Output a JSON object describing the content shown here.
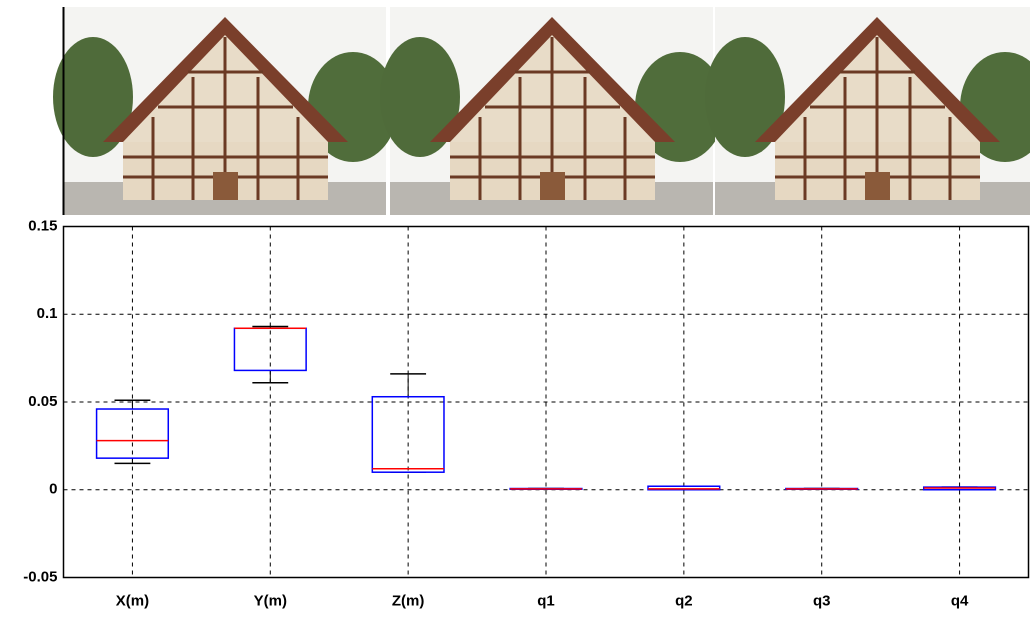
{
  "chart_data": {
    "type": "box",
    "categories": [
      "X(m)",
      "Y(m)",
      "Z(m)",
      "q1",
      "q2",
      "q3",
      "q4"
    ],
    "min": [
      0.015,
      0.061,
      0.01,
      0.0003,
      0.0,
      0.0003,
      0.0
    ],
    "q1": [
      0.018,
      0.068,
      0.01,
      0.0003,
      0.0,
      0.0003,
      0.0
    ],
    "median": [
      0.028,
      0.092,
      0.012,
      0.0005,
      0.0005,
      0.0005,
      0.001
    ],
    "q3": [
      0.046,
      0.092,
      0.053,
      0.0007,
      0.002,
      0.0007,
      0.0015
    ],
    "max": [
      0.051,
      0.093,
      0.066,
      0.0007,
      0.002,
      0.0007,
      0.0015
    ],
    "box_color": "#0000ff",
    "median_color": "#ff0000",
    "whisker_color": "#000000",
    "ylim": [
      -0.05,
      0.15
    ],
    "yticks": [
      -0.05,
      0,
      0.05,
      0.1,
      0.15
    ],
    "grid": true
  }
}
